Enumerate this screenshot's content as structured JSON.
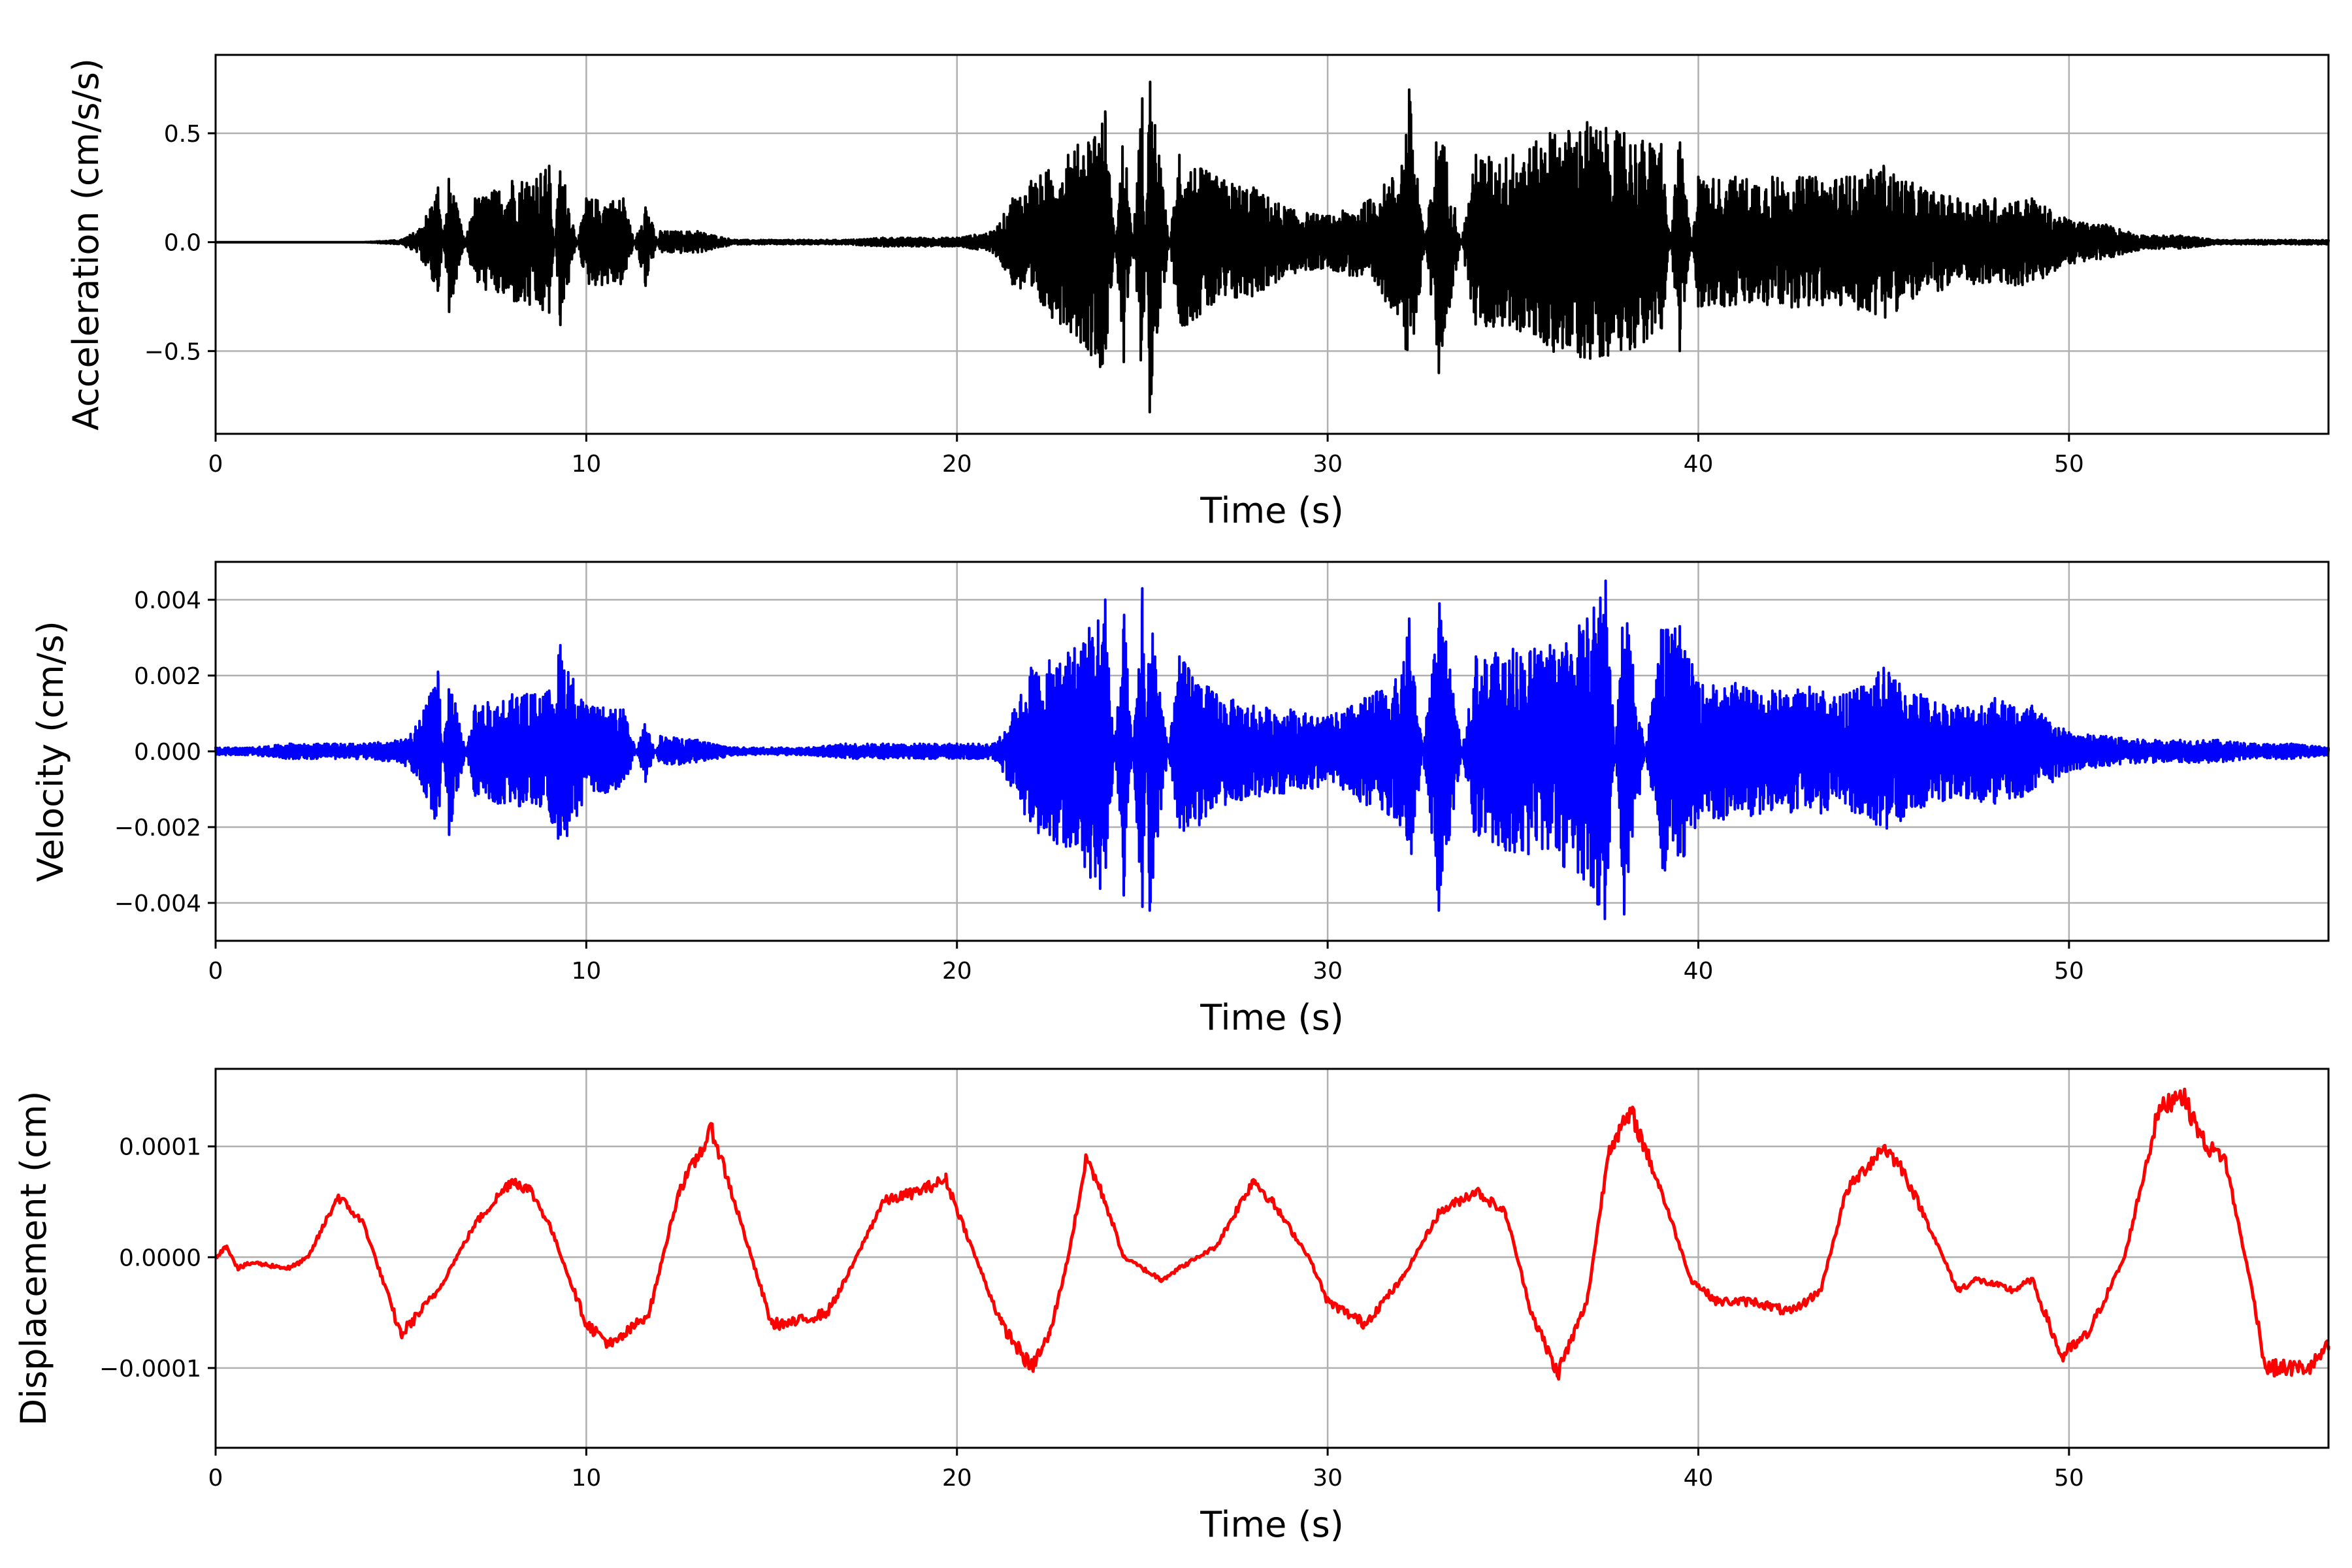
{
  "chart_data": [
    {
      "type": "line",
      "xlabel": "Time (s)",
      "ylabel": "Acceleration (cm/s/s)",
      "xlim": [
        0,
        57
      ],
      "ylim": [
        -0.88,
        0.86
      ],
      "xticks": [
        0,
        10,
        20,
        30,
        40,
        50
      ],
      "xtick_labels": [
        "0",
        "10",
        "20",
        "30",
        "40",
        "50"
      ],
      "yticks": [
        -0.5,
        0.0,
        0.5
      ],
      "ytick_labels": [
        "−0.5",
        "0.0",
        "0.5"
      ],
      "grid": true,
      "color": "#000000",
      "series": [
        {
          "x": [
            0,
            1,
            2,
            3,
            4,
            5,
            5.5,
            6,
            6.3,
            7,
            8,
            9,
            9.3,
            10,
            11,
            11.6,
            12,
            13,
            14,
            15,
            16,
            17,
            18,
            19,
            20,
            21,
            21.5,
            22,
            23,
            24,
            24.5,
            25,
            25.2,
            26,
            27,
            28,
            29,
            30,
            31,
            32,
            32.2,
            33,
            34,
            35,
            36,
            37,
            38,
            39,
            39.5,
            40,
            41,
            42,
            43,
            44,
            45,
            46,
            47,
            48,
            49,
            50,
            51,
            52,
            53,
            54,
            55,
            56,
            57
          ],
          "y": [
            0.0,
            0.0,
            0.0,
            0.0,
            0.0,
            0.01,
            0.06,
            0.25,
            -0.32,
            0.2,
            0.28,
            0.35,
            -0.38,
            0.2,
            0.2,
            -0.2,
            0.05,
            0.05,
            0.01,
            0.01,
            0.01,
            0.01,
            0.02,
            0.02,
            0.02,
            0.05,
            0.2,
            0.28,
            0.4,
            0.6,
            -0.55,
            0.66,
            -0.78,
            0.4,
            0.3,
            0.25,
            0.15,
            0.12,
            0.18,
            0.35,
            0.7,
            -0.6,
            0.4,
            0.4,
            0.5,
            0.55,
            0.5,
            0.45,
            -0.5,
            0.3,
            0.3,
            0.3,
            0.3,
            0.3,
            0.35,
            0.25,
            0.2,
            0.2,
            0.2,
            0.1,
            0.08,
            0.03,
            0.03,
            0.01,
            0.01,
            0.01,
            0.01
          ]
        }
      ]
    },
    {
      "type": "line",
      "xlabel": "Time (s)",
      "ylabel": "Velocity (cm/s)",
      "xlim": [
        0,
        57
      ],
      "ylim": [
        -0.005,
        0.005
      ],
      "xticks": [
        0,
        10,
        20,
        30,
        40,
        50
      ],
      "xtick_labels": [
        "0",
        "10",
        "20",
        "30",
        "40",
        "50"
      ],
      "yticks": [
        -0.004,
        -0.002,
        0.0,
        0.002,
        0.004
      ],
      "ytick_labels": [
        "−0.004",
        "−0.002",
        "0.000",
        "0.002",
        "0.004"
      ],
      "grid": true,
      "color": "#0000ff",
      "series": [
        {
          "x": [
            0,
            1,
            2,
            3,
            4,
            5,
            5.5,
            6,
            6.3,
            7,
            8,
            9,
            9.3,
            10,
            11,
            11.6,
            12,
            13,
            14,
            15,
            16,
            17,
            18,
            19,
            20,
            21,
            21.5,
            22,
            23,
            24,
            24.5,
            25,
            25.2,
            26,
            27,
            28,
            29,
            30,
            31,
            32,
            32.2,
            33,
            34,
            35,
            36,
            37,
            37.5,
            38,
            39,
            39.5,
            40,
            41,
            42,
            43,
            44,
            45,
            46,
            47,
            48,
            49,
            50,
            51,
            52,
            53,
            54,
            55,
            56,
            57
          ],
          "y": [
            0.0001,
            0.0001,
            0.0002,
            0.0002,
            0.0002,
            0.0003,
            0.0008,
            0.0021,
            -0.0022,
            0.0012,
            0.0015,
            0.0016,
            0.0028,
            0.0012,
            0.0011,
            -0.0008,
            0.0004,
            0.0003,
            0.0001,
            0.0001,
            0.0001,
            0.0002,
            0.0002,
            0.0002,
            0.0002,
            0.0002,
            0.001,
            0.0022,
            0.0026,
            0.004,
            -0.0038,
            0.0043,
            -0.0042,
            0.0025,
            0.0015,
            0.0012,
            0.0011,
            0.0009,
            0.0014,
            0.002,
            0.0035,
            -0.0042,
            0.0025,
            0.0027,
            0.0028,
            0.0035,
            0.0045,
            -0.0043,
            0.0032,
            0.0033,
            0.0018,
            0.0018,
            0.0016,
            0.0017,
            0.0015,
            0.0022,
            0.0015,
            0.0012,
            0.0014,
            0.0012,
            0.0005,
            0.0004,
            0.0003,
            0.0003,
            0.0003,
            0.0002,
            0.0002,
            0.0001
          ]
        }
      ]
    },
    {
      "type": "line",
      "xlabel": "Time (s)",
      "ylabel": "Displacement (cm)",
      "xlim": [
        0,
        57
      ],
      "ylim": [
        -0.000172,
        0.00017
      ],
      "xticks": [
        0,
        10,
        20,
        30,
        40,
        50
      ],
      "xtick_labels": [
        "0",
        "10",
        "20",
        "30",
        "40",
        "50"
      ],
      "yticks": [
        -0.0001,
        0.0,
        0.0001
      ],
      "ytick_labels": [
        "−0.0001",
        "0.0000",
        "0.0001"
      ],
      "grid": true,
      "color": "#ff0000",
      "series": [
        {
          "x": [
            0,
            0.3,
            0.6,
            1,
            2,
            2.5,
            3.3,
            4,
            5,
            6,
            7,
            8,
            8.5,
            9,
            10,
            10.7,
            11.7,
            12.5,
            13.4,
            14,
            15,
            15.5,
            16.5,
            17,
            18,
            19,
            19.7,
            20.5,
            21.2,
            22,
            22.5,
            23,
            23.5,
            24,
            24.5,
            25.5,
            26,
            27,
            28,
            28.5,
            29.5,
            30,
            31,
            32,
            33,
            34,
            34.8,
            35.5,
            36.2,
            37,
            37.6,
            38.2,
            39,
            39.8,
            40.5,
            41.5,
            42.5,
            43.3,
            44,
            45,
            45.5,
            46.2,
            47,
            47.5,
            48.5,
            49,
            49.8,
            50.5,
            51.5,
            52.4,
            53,
            53.7,
            54.2,
            55,
            55.3,
            56,
            56.5,
            57
          ],
          "y": [
            0.0,
            1e-05,
            -1e-05,
            -5e-06,
            -1e-05,
            0.0,
            5.5e-05,
            3e-05,
            -7e-05,
            -3e-05,
            3e-05,
            7e-05,
            6e-05,
            3e-05,
            -6e-05,
            -8e-05,
            -5e-05,
            6e-05,
            0.000115,
            5e-05,
            -6e-05,
            -6e-05,
            -5e-05,
            -2e-05,
            5e-05,
            6e-05,
            7e-05,
            0.0,
            -6e-05,
            -0.0001,
            -7e-05,
            0.0,
            9e-05,
            5e-05,
            0.0,
            -2e-05,
            -1e-05,
            1e-05,
            7e-05,
            5e-05,
            0.0,
            -4e-05,
            -6e-05,
            -2e-05,
            4e-05,
            6e-05,
            4e-05,
            -5e-05,
            -0.000105,
            -4e-05,
            0.0001,
            0.00013,
            6e-05,
            -2e-05,
            -4e-05,
            -4e-05,
            -5e-05,
            -3e-05,
            6e-05,
            0.0001,
            8e-05,
            3e-05,
            -3e-05,
            -2e-05,
            -3e-05,
            -2e-05,
            -9e-05,
            -7e-05,
            0.0,
            0.00013,
            0.00015,
            0.0001,
            9e-05,
            -4e-05,
            -0.0001,
            -0.0001,
            -0.0001,
            -8e-05
          ]
        }
      ]
    }
  ]
}
